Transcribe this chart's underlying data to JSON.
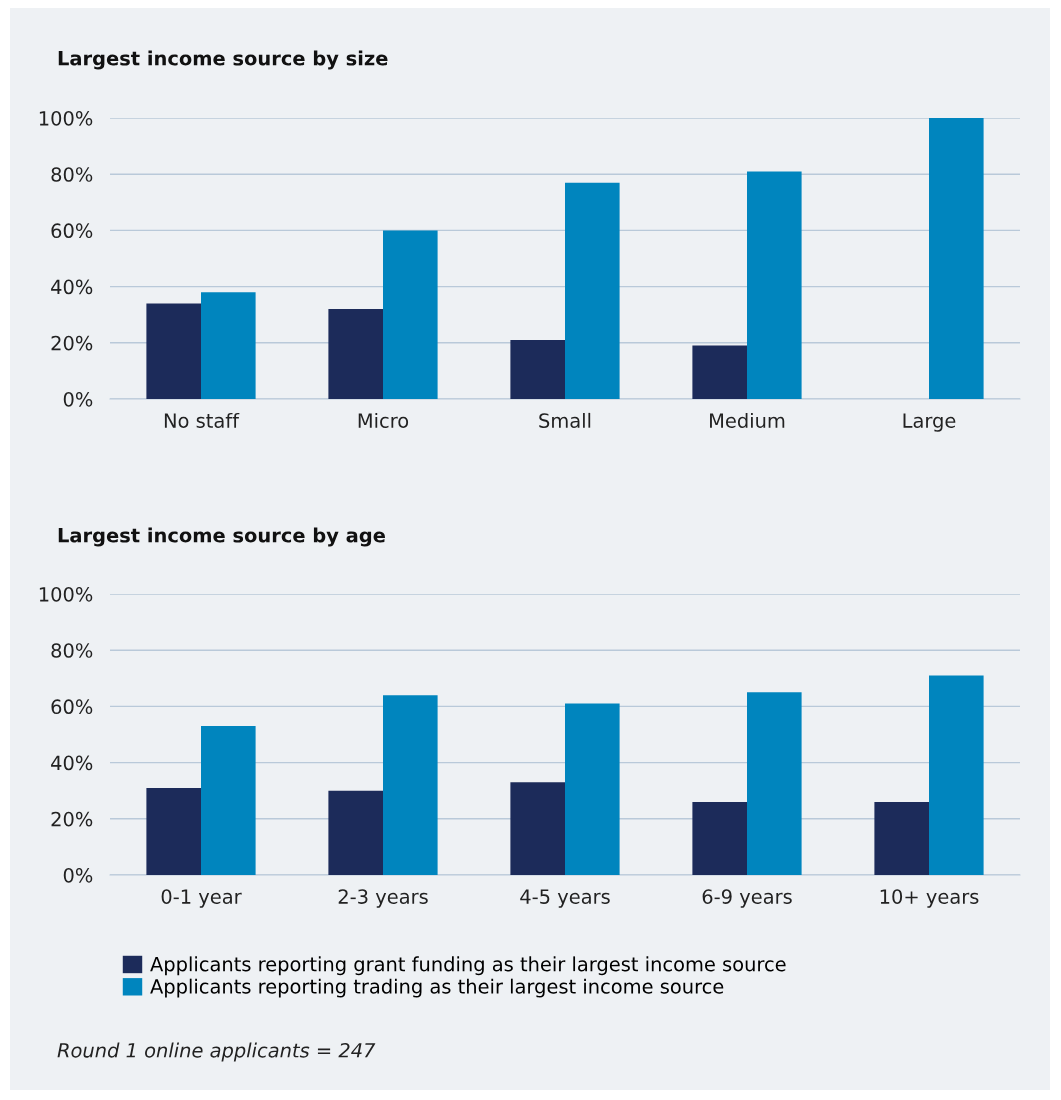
{
  "chart_data": [
    {
      "type": "bar",
      "title": "Largest income source by size",
      "categories": [
        "No staff",
        "Micro",
        "Small",
        "Medium",
        "Large"
      ],
      "series": [
        {
          "color": "#1c2b5a",
          "values": [
            34,
            32,
            21,
            19,
            0
          ]
        },
        {
          "color": "#0085be",
          "values": [
            38,
            60,
            77,
            81,
            100
          ]
        }
      ],
      "ylim": [
        0,
        100
      ],
      "yticks": [
        {
          "value": 0,
          "label": "0%"
        },
        {
          "value": 20,
          "label": "20%"
        },
        {
          "value": 40,
          "label": "40%"
        },
        {
          "value": 60,
          "label": "60%"
        },
        {
          "value": 80,
          "label": "80%"
        },
        {
          "value": 100,
          "label": "100%"
        }
      ],
      "grid": "y",
      "legend": false
    },
    {
      "type": "bar",
      "title": "Largest income source by age",
      "categories": [
        "0-1 year",
        "2-3 years",
        "4-5 years",
        "6-9 years",
        "10+ years"
      ],
      "series": [
        {
          "name": "Applicants reporting grant funding as their largest income source",
          "color": "#1c2b5a",
          "values": [
            31,
            30,
            33,
            26,
            26
          ]
        },
        {
          "name": "Applicants reporting trading as their largest income source",
          "color": "#0085be",
          "values": [
            53,
            64,
            61,
            65,
            71
          ]
        }
      ],
      "ylim": [
        0,
        100
      ],
      "yticks": [
        {
          "value": 0,
          "label": "0%"
        },
        {
          "value": 20,
          "label": "20%"
        },
        {
          "value": 40,
          "label": "40%"
        },
        {
          "value": 60,
          "label": "60%"
        },
        {
          "value": 80,
          "label": "80%"
        },
        {
          "value": 100,
          "label": "100%"
        }
      ],
      "grid": "y",
      "legend": "bottom",
      "annotations": [
        "Round 1 online applicants = 247"
      ]
    }
  ]
}
